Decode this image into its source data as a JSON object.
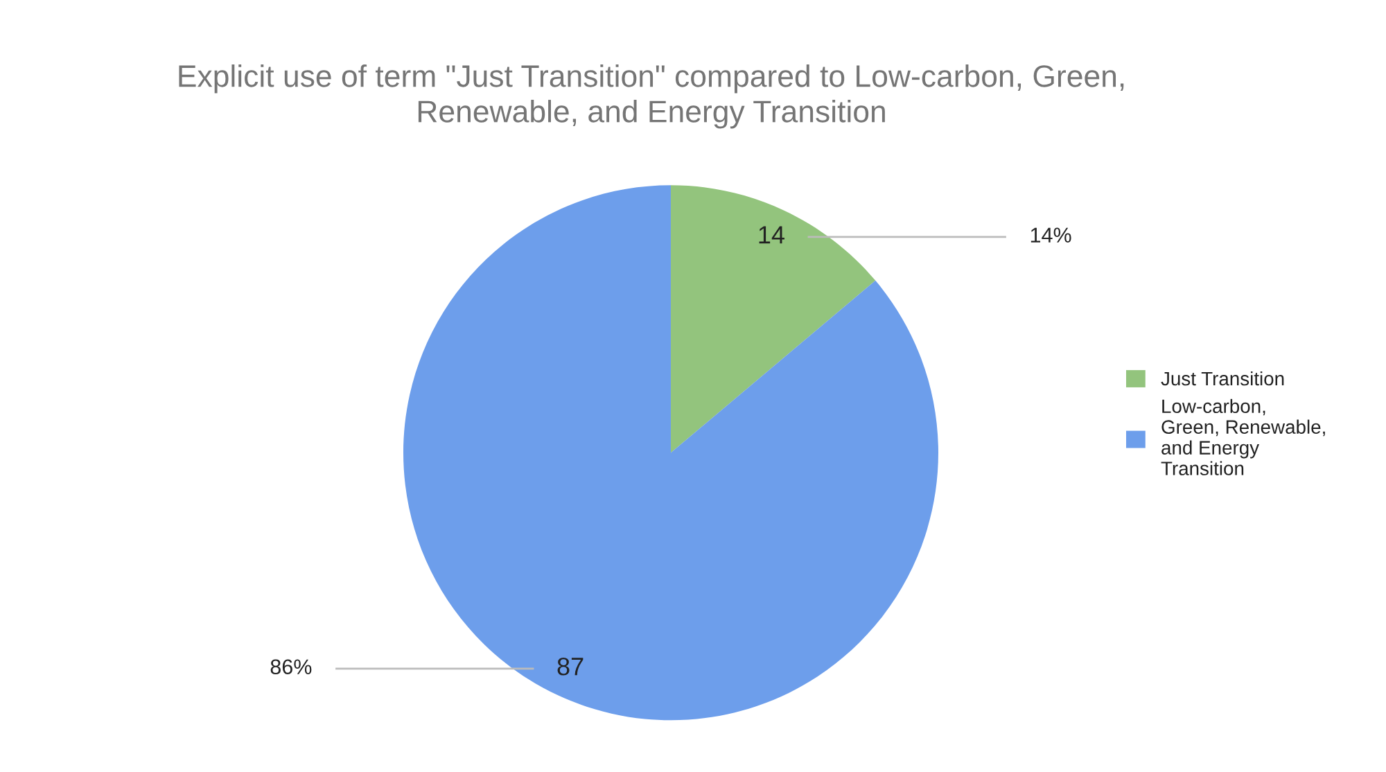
{
  "chart_data": {
    "type": "pie",
    "title": "Explicit use of term \"Just Transition\" compared to Low-carbon, Green,\nRenewable, and Energy Transition",
    "categories": [
      "Just Transition",
      "Low-carbon,\nGreen, Renewable,\nand Energy\nTransition"
    ],
    "values": [
      14,
      87
    ],
    "colors": [
      "#93c47d",
      "#6d9eeb"
    ],
    "value_labels": [
      "14",
      "87"
    ],
    "annotations": [
      "14%",
      "86%"
    ],
    "legend": "right"
  }
}
